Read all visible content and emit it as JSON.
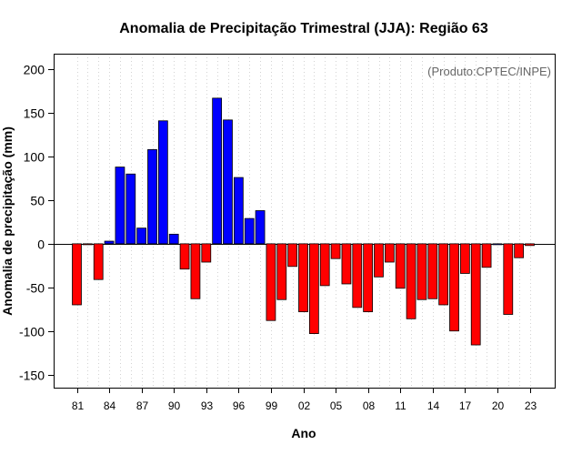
{
  "chart_data": {
    "type": "bar",
    "title": "Anomalia de Precipitação Trimestral (JJA): Região 63",
    "xlabel": "Ano",
    "ylabel": "Anomalia de precipitação (mm)",
    "credit": "(Produto:CPTEC/INPE)",
    "ylim": [
      -165,
      218
    ],
    "yticks": [
      -150,
      -100,
      -50,
      0,
      50,
      100,
      150,
      200
    ],
    "xtick_labels": [
      "81",
      "84",
      "87",
      "90",
      "93",
      "96",
      "99",
      "02",
      "05",
      "08",
      "11",
      "14",
      "17",
      "20",
      "23"
    ],
    "xtick_years": [
      1981,
      1984,
      1987,
      1990,
      1993,
      1996,
      1999,
      2002,
      2005,
      2008,
      2011,
      2014,
      2017,
      2020,
      2023
    ],
    "years": [
      1981,
      1982,
      1983,
      1984,
      1985,
      1986,
      1987,
      1988,
      1989,
      1990,
      1991,
      1992,
      1993,
      1994,
      1995,
      1996,
      1997,
      1998,
      1999,
      2000,
      2001,
      2002,
      2003,
      2004,
      2005,
      2006,
      2007,
      2008,
      2009,
      2010,
      2011,
      2012,
      2013,
      2014,
      2015,
      2016,
      2017,
      2018,
      2019,
      2020,
      2021,
      2022,
      2023
    ],
    "values": [
      -70,
      -1,
      -41,
      3,
      88,
      80,
      18,
      108,
      141,
      11,
      -29,
      -63,
      -21,
      167,
      142,
      76,
      29,
      38,
      -88,
      -64,
      -26,
      -78,
      -103,
      -48,
      -17,
      -46,
      -73,
      -78,
      -38,
      -21,
      -51,
      -86,
      -64,
      -63,
      -70,
      -100,
      -34,
      -116,
      -27,
      0,
      -81,
      -16,
      -2
    ],
    "grid": true,
    "colors": {
      "positive": "#0000ff",
      "negative": "#ff0000",
      "grid": "#d3d3d3"
    }
  }
}
